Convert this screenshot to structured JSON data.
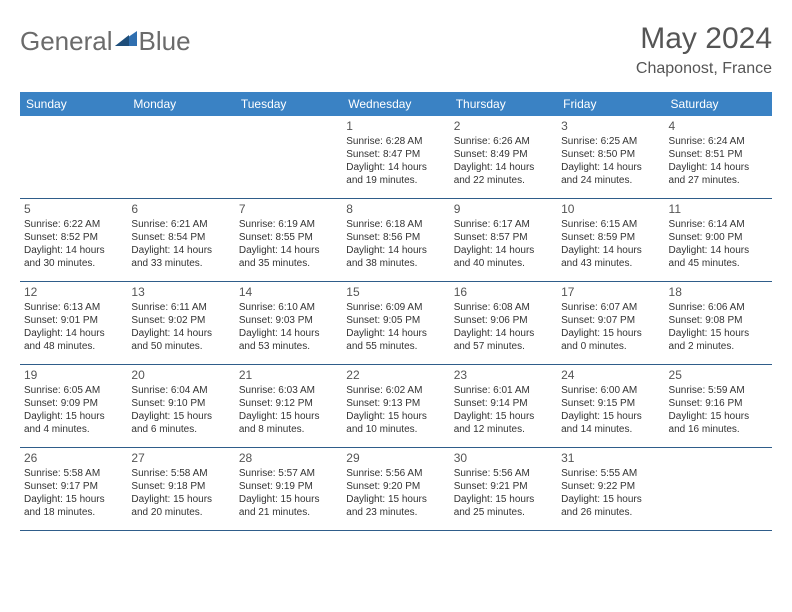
{
  "logo": {
    "text1": "General",
    "text2": "Blue"
  },
  "title": "May 2024",
  "location": "Chaponost, France",
  "colors": {
    "header_bg": "#3a82c4",
    "header_fg": "#ffffff",
    "rule": "#2f5d8a",
    "text": "#333333",
    "title": "#555555"
  },
  "daysOfWeek": [
    "Sunday",
    "Monday",
    "Tuesday",
    "Wednesday",
    "Thursday",
    "Friday",
    "Saturday"
  ],
  "weeks": [
    [
      null,
      null,
      null,
      {
        "n": "1",
        "sr": "Sunrise: 6:28 AM",
        "ss": "Sunset: 8:47 PM",
        "dl1": "Daylight: 14 hours",
        "dl2": "and 19 minutes."
      },
      {
        "n": "2",
        "sr": "Sunrise: 6:26 AM",
        "ss": "Sunset: 8:49 PM",
        "dl1": "Daylight: 14 hours",
        "dl2": "and 22 minutes."
      },
      {
        "n": "3",
        "sr": "Sunrise: 6:25 AM",
        "ss": "Sunset: 8:50 PM",
        "dl1": "Daylight: 14 hours",
        "dl2": "and 24 minutes."
      },
      {
        "n": "4",
        "sr": "Sunrise: 6:24 AM",
        "ss": "Sunset: 8:51 PM",
        "dl1": "Daylight: 14 hours",
        "dl2": "and 27 minutes."
      }
    ],
    [
      {
        "n": "5",
        "sr": "Sunrise: 6:22 AM",
        "ss": "Sunset: 8:52 PM",
        "dl1": "Daylight: 14 hours",
        "dl2": "and 30 minutes."
      },
      {
        "n": "6",
        "sr": "Sunrise: 6:21 AM",
        "ss": "Sunset: 8:54 PM",
        "dl1": "Daylight: 14 hours",
        "dl2": "and 33 minutes."
      },
      {
        "n": "7",
        "sr": "Sunrise: 6:19 AM",
        "ss": "Sunset: 8:55 PM",
        "dl1": "Daylight: 14 hours",
        "dl2": "and 35 minutes."
      },
      {
        "n": "8",
        "sr": "Sunrise: 6:18 AM",
        "ss": "Sunset: 8:56 PM",
        "dl1": "Daylight: 14 hours",
        "dl2": "and 38 minutes."
      },
      {
        "n": "9",
        "sr": "Sunrise: 6:17 AM",
        "ss": "Sunset: 8:57 PM",
        "dl1": "Daylight: 14 hours",
        "dl2": "and 40 minutes."
      },
      {
        "n": "10",
        "sr": "Sunrise: 6:15 AM",
        "ss": "Sunset: 8:59 PM",
        "dl1": "Daylight: 14 hours",
        "dl2": "and 43 minutes."
      },
      {
        "n": "11",
        "sr": "Sunrise: 6:14 AM",
        "ss": "Sunset: 9:00 PM",
        "dl1": "Daylight: 14 hours",
        "dl2": "and 45 minutes."
      }
    ],
    [
      {
        "n": "12",
        "sr": "Sunrise: 6:13 AM",
        "ss": "Sunset: 9:01 PM",
        "dl1": "Daylight: 14 hours",
        "dl2": "and 48 minutes."
      },
      {
        "n": "13",
        "sr": "Sunrise: 6:11 AM",
        "ss": "Sunset: 9:02 PM",
        "dl1": "Daylight: 14 hours",
        "dl2": "and 50 minutes."
      },
      {
        "n": "14",
        "sr": "Sunrise: 6:10 AM",
        "ss": "Sunset: 9:03 PM",
        "dl1": "Daylight: 14 hours",
        "dl2": "and 53 minutes."
      },
      {
        "n": "15",
        "sr": "Sunrise: 6:09 AM",
        "ss": "Sunset: 9:05 PM",
        "dl1": "Daylight: 14 hours",
        "dl2": "and 55 minutes."
      },
      {
        "n": "16",
        "sr": "Sunrise: 6:08 AM",
        "ss": "Sunset: 9:06 PM",
        "dl1": "Daylight: 14 hours",
        "dl2": "and 57 minutes."
      },
      {
        "n": "17",
        "sr": "Sunrise: 6:07 AM",
        "ss": "Sunset: 9:07 PM",
        "dl1": "Daylight: 15 hours",
        "dl2": "and 0 minutes."
      },
      {
        "n": "18",
        "sr": "Sunrise: 6:06 AM",
        "ss": "Sunset: 9:08 PM",
        "dl1": "Daylight: 15 hours",
        "dl2": "and 2 minutes."
      }
    ],
    [
      {
        "n": "19",
        "sr": "Sunrise: 6:05 AM",
        "ss": "Sunset: 9:09 PM",
        "dl1": "Daylight: 15 hours",
        "dl2": "and 4 minutes."
      },
      {
        "n": "20",
        "sr": "Sunrise: 6:04 AM",
        "ss": "Sunset: 9:10 PM",
        "dl1": "Daylight: 15 hours",
        "dl2": "and 6 minutes."
      },
      {
        "n": "21",
        "sr": "Sunrise: 6:03 AM",
        "ss": "Sunset: 9:12 PM",
        "dl1": "Daylight: 15 hours",
        "dl2": "and 8 minutes."
      },
      {
        "n": "22",
        "sr": "Sunrise: 6:02 AM",
        "ss": "Sunset: 9:13 PM",
        "dl1": "Daylight: 15 hours",
        "dl2": "and 10 minutes."
      },
      {
        "n": "23",
        "sr": "Sunrise: 6:01 AM",
        "ss": "Sunset: 9:14 PM",
        "dl1": "Daylight: 15 hours",
        "dl2": "and 12 minutes."
      },
      {
        "n": "24",
        "sr": "Sunrise: 6:00 AM",
        "ss": "Sunset: 9:15 PM",
        "dl1": "Daylight: 15 hours",
        "dl2": "and 14 minutes."
      },
      {
        "n": "25",
        "sr": "Sunrise: 5:59 AM",
        "ss": "Sunset: 9:16 PM",
        "dl1": "Daylight: 15 hours",
        "dl2": "and 16 minutes."
      }
    ],
    [
      {
        "n": "26",
        "sr": "Sunrise: 5:58 AM",
        "ss": "Sunset: 9:17 PM",
        "dl1": "Daylight: 15 hours",
        "dl2": "and 18 minutes."
      },
      {
        "n": "27",
        "sr": "Sunrise: 5:58 AM",
        "ss": "Sunset: 9:18 PM",
        "dl1": "Daylight: 15 hours",
        "dl2": "and 20 minutes."
      },
      {
        "n": "28",
        "sr": "Sunrise: 5:57 AM",
        "ss": "Sunset: 9:19 PM",
        "dl1": "Daylight: 15 hours",
        "dl2": "and 21 minutes."
      },
      {
        "n": "29",
        "sr": "Sunrise: 5:56 AM",
        "ss": "Sunset: 9:20 PM",
        "dl1": "Daylight: 15 hours",
        "dl2": "and 23 minutes."
      },
      {
        "n": "30",
        "sr": "Sunrise: 5:56 AM",
        "ss": "Sunset: 9:21 PM",
        "dl1": "Daylight: 15 hours",
        "dl2": "and 25 minutes."
      },
      {
        "n": "31",
        "sr": "Sunrise: 5:55 AM",
        "ss": "Sunset: 9:22 PM",
        "dl1": "Daylight: 15 hours",
        "dl2": "and 26 minutes."
      },
      null
    ]
  ]
}
